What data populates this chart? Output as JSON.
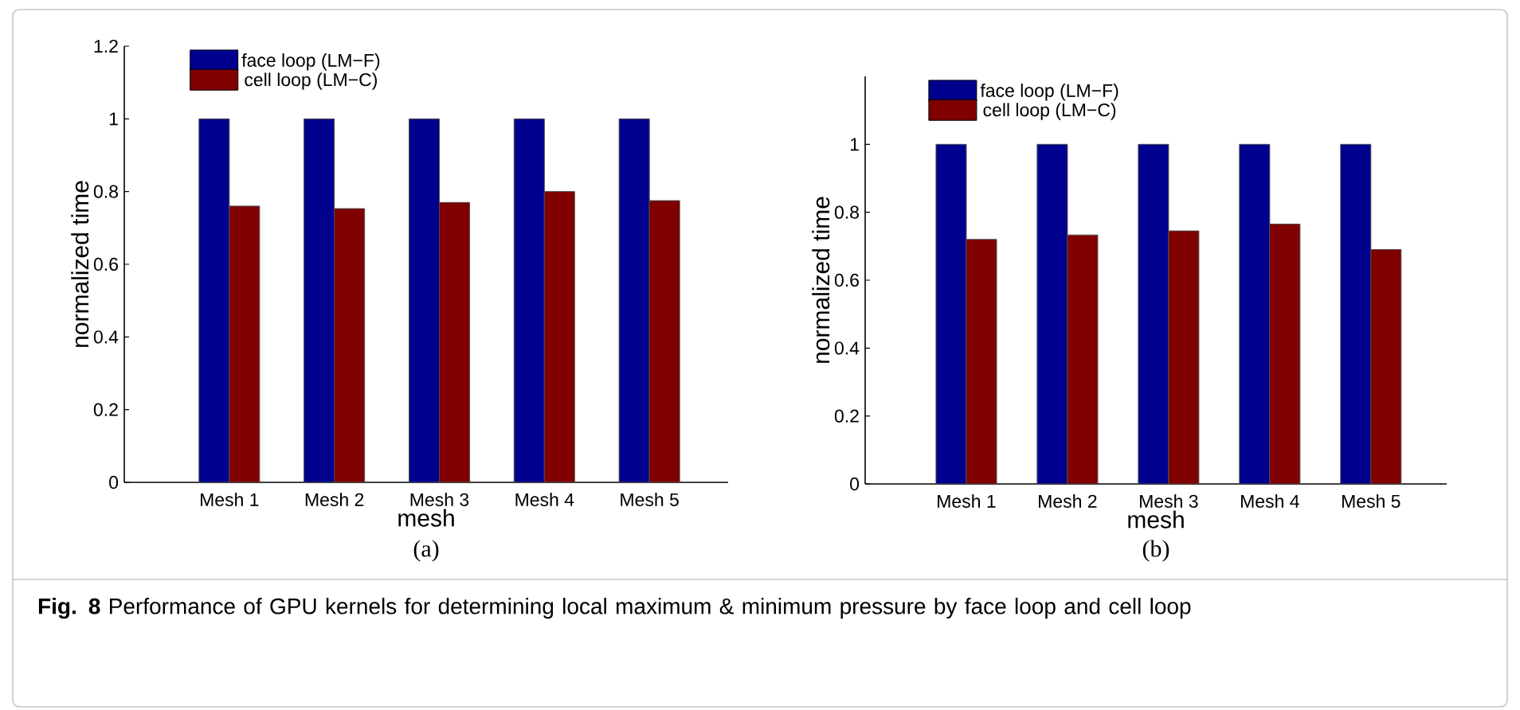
{
  "chart_data": [
    {
      "type": "bar",
      "subtitle": "(a)",
      "xlabel": "mesh",
      "ylabel": "normalized time",
      "categories": [
        "Mesh 1",
        "Mesh 2",
        "Mesh 3",
        "Mesh 4",
        "Mesh 5"
      ],
      "series": [
        {
          "name": "face loop (LM−F)",
          "color": "#00008f",
          "values": [
            1,
            1,
            1,
            1,
            1
          ]
        },
        {
          "name": "cell loop (LM−C)",
          "color": "#800000",
          "values": [
            0.76,
            0.753,
            0.77,
            0.8,
            0.775
          ]
        }
      ],
      "ylim": [
        0,
        1.2
      ],
      "yticks": [
        0,
        0.2,
        0.4,
        0.6,
        0.8,
        1,
        1.2
      ],
      "legend": "top left",
      "annotations": [
        "**Fig. 8** Performance of GPU kernels for determining local maximum & minimum pressure by face loop and cell loop"
      ]
    },
    {
      "type": "bar",
      "subtitle": "(b)",
      "xlabel": "mesh",
      "ylabel": "normalized time",
      "categories": [
        "Mesh 1",
        "Mesh 2",
        "Mesh 3",
        "Mesh 4",
        "Mesh 5"
      ],
      "series": [
        {
          "name": "face loop (LM−F)",
          "color": "#00008f",
          "values": [
            1,
            1,
            1,
            1,
            1
          ]
        },
        {
          "name": "cell loop (LM−C)",
          "color": "#800000",
          "values": [
            0.72,
            0.733,
            0.745,
            0.765,
            0.69
          ]
        }
      ],
      "ylim": [
        0,
        1.2
      ],
      "yticks": [
        0,
        0.2,
        0.4,
        0.6,
        0.8,
        1
      ],
      "legend": "top left"
    }
  ]
}
